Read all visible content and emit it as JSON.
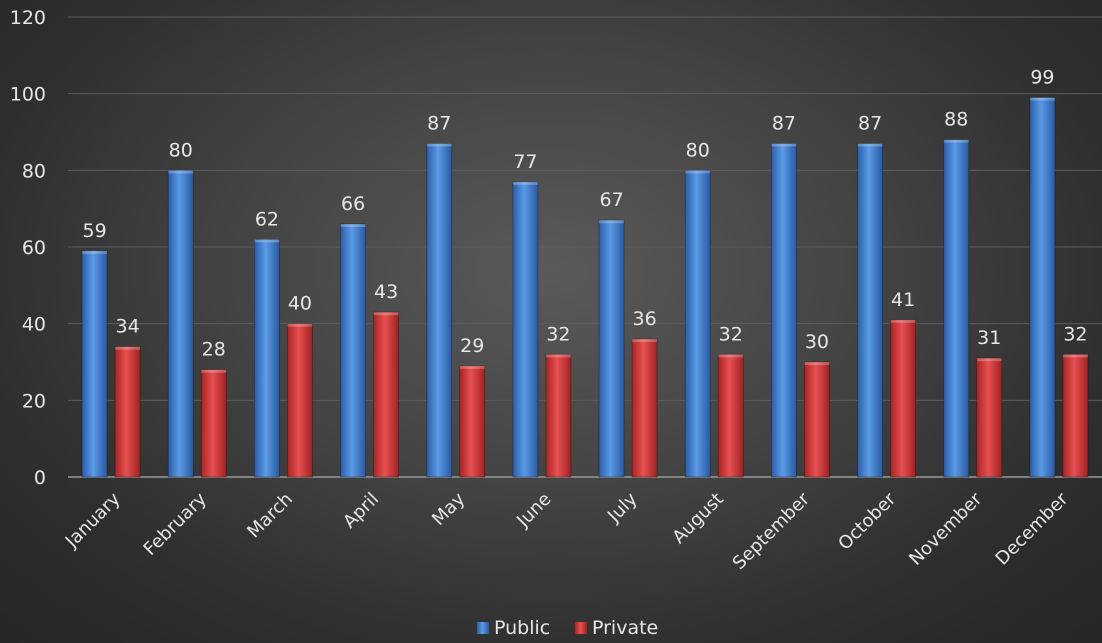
{
  "colors": {
    "public": "#4a86d4",
    "private": "#d83b3b"
  },
  "legend": {
    "position": "bottom"
  },
  "chart_data": {
    "type": "bar",
    "categories": [
      "January",
      "February",
      "March",
      "April",
      "May",
      "June",
      "July",
      "August",
      "September",
      "October",
      "November",
      "December"
    ],
    "series": [
      {
        "name": "Public",
        "values": [
          59,
          80,
          62,
          66,
          87,
          77,
          67,
          80,
          87,
          87,
          88,
          99
        ]
      },
      {
        "name": "Private",
        "values": [
          34,
          28,
          40,
          43,
          29,
          32,
          36,
          32,
          30,
          41,
          31,
          32
        ]
      }
    ],
    "yticks": [
      "0",
      "20",
      "40",
      "60",
      "80",
      "100",
      "120"
    ],
    "ylim": [
      0,
      120
    ],
    "grid": true,
    "data_labels": true
  }
}
